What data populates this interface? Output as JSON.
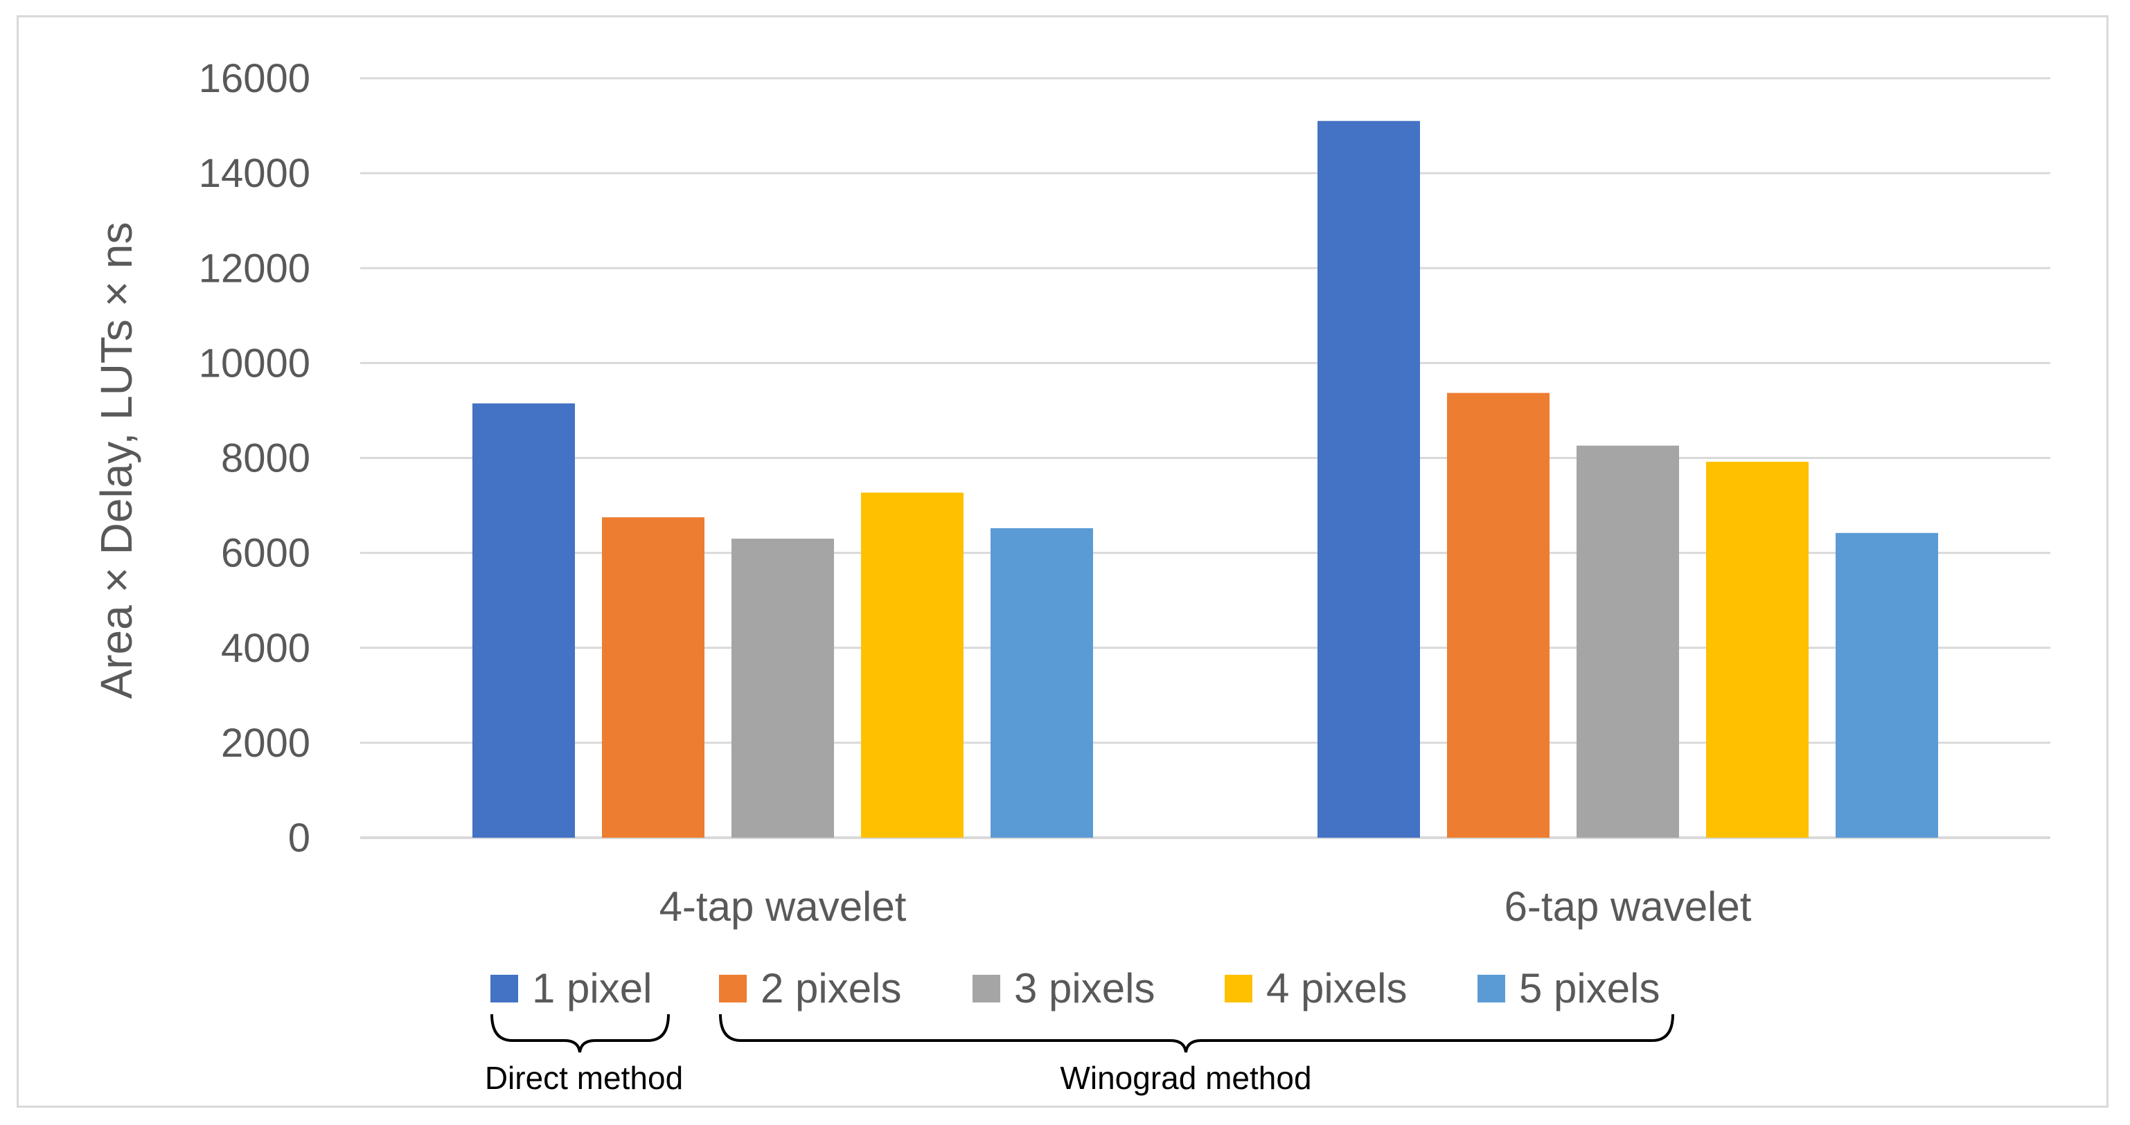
{
  "chart_data": {
    "type": "bar",
    "categories": [
      "4-tap wavelet",
      "6-tap wavelet"
    ],
    "series": [
      {
        "name": "1 pixel",
        "values": [
          9150,
          15100
        ],
        "color": "#4472C4"
      },
      {
        "name": "2 pixels",
        "values": [
          6750,
          9370
        ],
        "color": "#ED7D31"
      },
      {
        "name": "3 pixels",
        "values": [
          6300,
          8260
        ],
        "color": "#A5A5A5"
      },
      {
        "name": "4 pixels",
        "values": [
          7270,
          7920
        ],
        "color": "#FFC000"
      },
      {
        "name": "5 pixels",
        "values": [
          6520,
          6420
        ],
        "color": "#5B9BD5"
      }
    ],
    "title": "",
    "xlabel": "",
    "ylabel": "Area × Delay, LUTs × ns",
    "ylim": [
      0,
      16000
    ],
    "yticks": [
      "0",
      "2000",
      "4000",
      "6000",
      "8000",
      "10000",
      "12000",
      "14000",
      "16000"
    ],
    "grid": true,
    "legend_position": "bottom",
    "annotations": {
      "direct": "Direct method",
      "winograd": "Winograd method"
    }
  }
}
